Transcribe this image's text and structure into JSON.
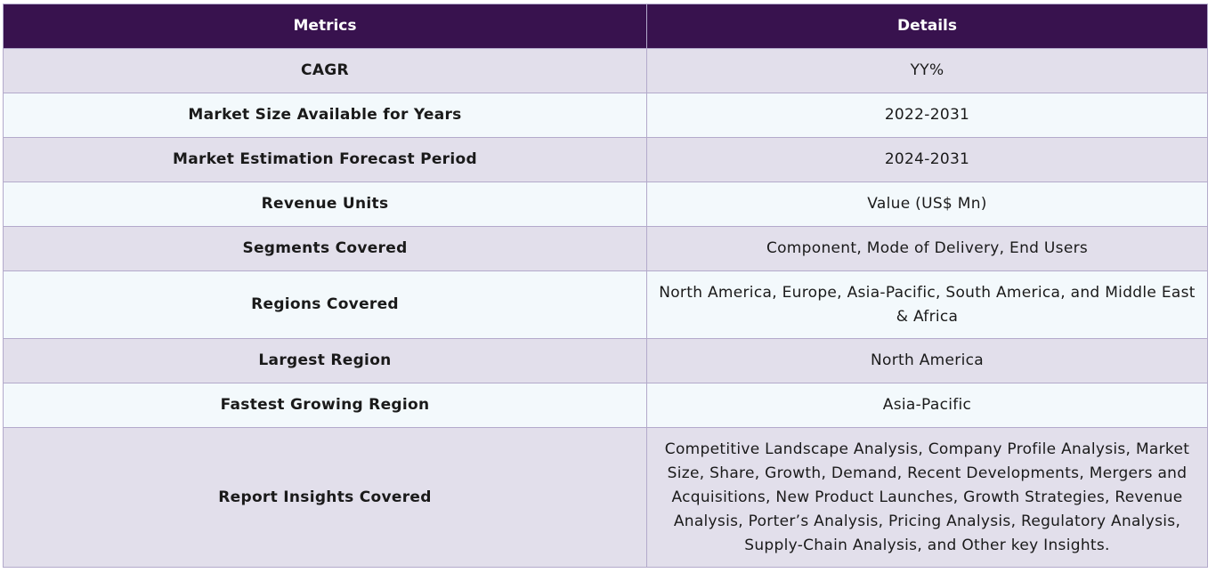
{
  "table": {
    "headers": [
      "Metrics",
      "Details"
    ],
    "rows": [
      {
        "metric": "CAGR",
        "detail": "YY%"
      },
      {
        "metric": "Market Size Available for Years",
        "detail": "2022-2031"
      },
      {
        "metric": "Market Estimation Forecast Period",
        "detail": "2024-2031"
      },
      {
        "metric": "Revenue Units",
        "detail": "Value (US$ Mn)"
      },
      {
        "metric": "Segments Covered",
        "detail": "Component, Mode of Delivery, End Users"
      },
      {
        "metric": "Regions Covered",
        "detail": "North America, Europe, Asia-Pacific, South America, and Middle East & Africa"
      },
      {
        "metric": "Largest Region",
        "detail": "North America"
      },
      {
        "metric": "Fastest Growing Region",
        "detail": "Asia-Pacific"
      },
      {
        "metric": "Report Insights Covered",
        "detail": "Competitive Landscape Analysis, Company Profile Analysis, Market Size, Share, Growth, Demand, Recent Developments, Mergers and Acquisitions, New Product Launches, Growth Strategies, Revenue Analysis, Porter’s Analysis, Pricing Analysis, Regulatory Analysis, Supply-Chain Analysis, and Other key Insights."
      }
    ]
  },
  "colors": {
    "header_bg": "#38124e",
    "row_odd_bg": "#e2dfeb",
    "row_even_bg": "#f3f9fc",
    "border": "#b3aacb"
  }
}
